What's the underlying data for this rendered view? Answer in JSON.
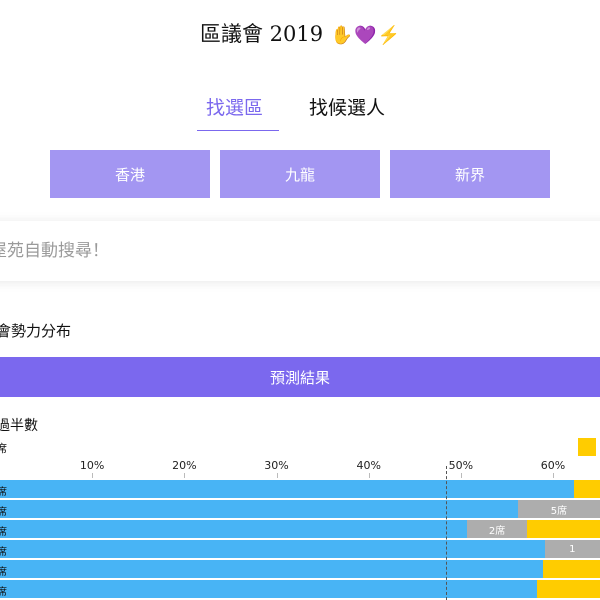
{
  "header": {
    "title": "區議會 2019",
    "emoji": [
      "✋",
      "💜",
      "⚡"
    ]
  },
  "tabs": [
    {
      "label": "找選區",
      "active": true
    },
    {
      "label": "找候選人",
      "active": false
    }
  ],
  "regions": [
    "香港",
    "九龍",
    "新界"
  ],
  "search": {
    "placeholder": "屋苑自動搜尋！"
  },
  "section": {
    "title": "會勢力分布"
  },
  "predict_button": "預測結果",
  "chart_data": {
    "type": "bar",
    "stacked": true,
    "orientation": "horizontal",
    "title_fragment": "過半數",
    "subtitle_fragment": "席",
    "x_ticks": [
      "10%",
      "20%",
      "30%",
      "40%",
      "50%",
      "60%"
    ],
    "xlim": [
      0,
      65
    ],
    "reference_line": 50,
    "colors": {
      "blue": "#48b4f5",
      "grey": "#adadad",
      "yellow": "#ffcc00"
    },
    "rows": [
      {
        "label": "席",
        "segments": [
          {
            "color": "blue",
            "value": 62.2
          },
          {
            "color": "yellow",
            "value": 2.8
          }
        ]
      },
      {
        "label": "席",
        "segments": [
          {
            "color": "blue",
            "value": 56.1
          },
          {
            "color": "grey",
            "value": 8.9,
            "label": "5席"
          }
        ]
      },
      {
        "label": "席",
        "segments": [
          {
            "color": "blue",
            "value": 50.6
          },
          {
            "color": "grey",
            "value": 6.5,
            "label": "2席"
          },
          {
            "color": "yellow",
            "value": 7.9
          }
        ]
      },
      {
        "label": "席",
        "segments": [
          {
            "color": "blue",
            "value": 59.0
          },
          {
            "color": "grey",
            "value": 6.0,
            "label": "1"
          }
        ]
      },
      {
        "label": "席",
        "segments": [
          {
            "color": "blue",
            "value": 58.8
          },
          {
            "color": "yellow",
            "value": 6.2
          }
        ]
      },
      {
        "label": "席",
        "segments": [
          {
            "color": "blue",
            "value": 58.2
          },
          {
            "color": "yellow",
            "value": 6.8
          }
        ]
      }
    ]
  }
}
